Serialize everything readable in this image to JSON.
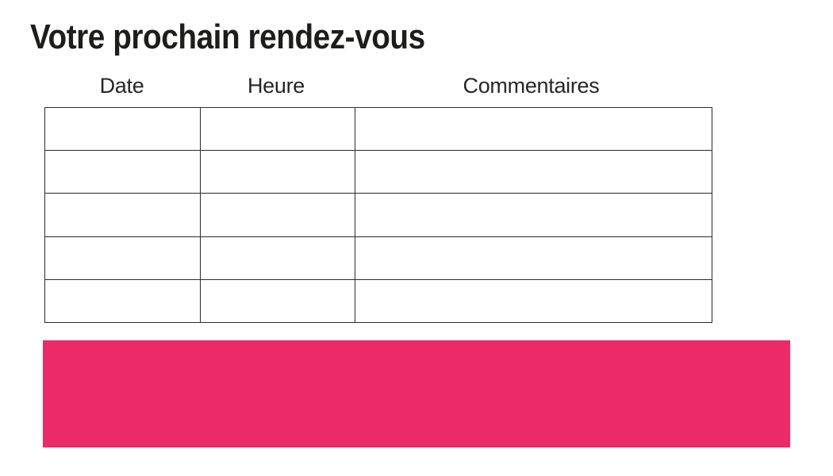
{
  "page": {
    "title": "Votre prochain rendez-vous",
    "background_color": "#ffffff"
  },
  "colors": {
    "title_text": "#1d1d1b",
    "header_text": "#262626",
    "table_border": "#2b2b2b",
    "banner_pink": "#ed2a68"
  },
  "table": {
    "headers": [
      "Date",
      "Heure",
      "Commentaires"
    ],
    "rows": [
      [
        "",
        "",
        ""
      ],
      [
        "",
        "",
        ""
      ],
      [
        "",
        "",
        ""
      ],
      [
        "",
        "",
        ""
      ],
      [
        "",
        "",
        ""
      ]
    ]
  },
  "banner": {
    "text": ""
  }
}
